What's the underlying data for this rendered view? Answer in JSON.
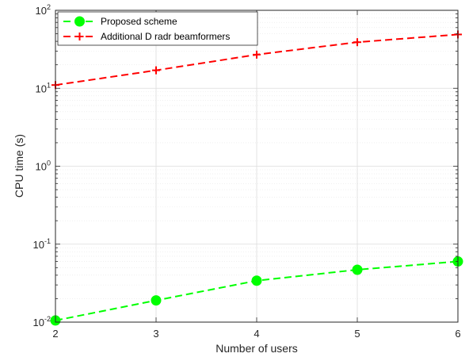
{
  "chart_data": {
    "type": "line",
    "xlabel": "Number of users",
    "ylabel": "CPU time (s)",
    "x": [
      2,
      3,
      4,
      5,
      6
    ],
    "xlim": [
      2,
      6
    ],
    "ylim": [
      0.01,
      100
    ],
    "yscale": "log",
    "x_ticks": [
      "2",
      "3",
      "4",
      "5",
      "6"
    ],
    "y_ticks": [
      {
        "base": "10",
        "exp": "-2",
        "value": 0.01
      },
      {
        "base": "10",
        "exp": "-1",
        "value": 0.1
      },
      {
        "base": "10",
        "exp": "0",
        "value": 1
      },
      {
        "base": "10",
        "exp": "1",
        "value": 10
      },
      {
        "base": "10",
        "exp": "2",
        "value": 100
      }
    ],
    "grid": true,
    "legend_position": "top-left",
    "series": [
      {
        "name": "Proposed scheme",
        "values": [
          0.0105,
          0.019,
          0.034,
          0.047,
          0.06
        ],
        "color": "#00ff00",
        "line_style": "dashed",
        "marker": "circle"
      },
      {
        "name": "Additional D radr beamformers",
        "values": [
          11,
          17,
          27,
          39,
          49
        ],
        "color": "#ff0000",
        "line_style": "dashed",
        "marker": "plus"
      }
    ]
  }
}
